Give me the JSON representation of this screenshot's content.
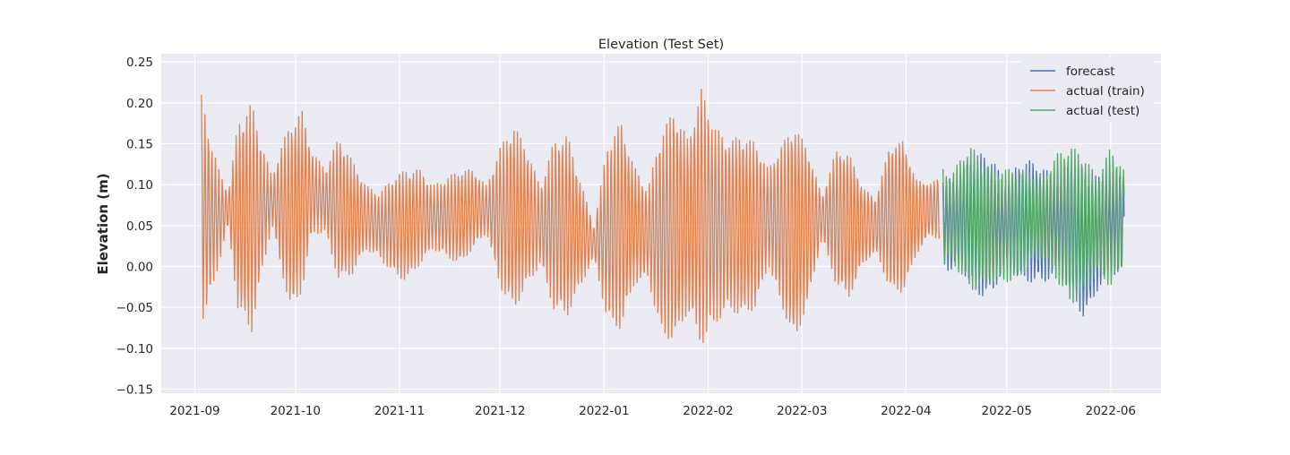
{
  "chart_data": {
    "type": "line",
    "title": "Elevation (Test Set)",
    "xlabel": "",
    "ylabel": "Elevation (m)",
    "xlim": [
      "2021-08-22",
      "2022-06-16"
    ],
    "ylim": [
      -0.155,
      0.26
    ],
    "grid": true,
    "legend_position": "top-right",
    "x_ticks": [
      {
        "label": "2021-09",
        "date": "2021-09-01"
      },
      {
        "label": "2021-10",
        "date": "2021-10-01"
      },
      {
        "label": "2021-11",
        "date": "2021-11-01"
      },
      {
        "label": "2021-12",
        "date": "2021-12-01"
      },
      {
        "label": "2022-01",
        "date": "2022-01-01"
      },
      {
        "label": "2022-02",
        "date": "2022-02-01"
      },
      {
        "label": "2022-03",
        "date": "2022-03-01"
      },
      {
        "label": "2022-04",
        "date": "2022-04-01"
      },
      {
        "label": "2022-05",
        "date": "2022-05-01"
      },
      {
        "label": "2022-06",
        "date": "2022-06-01"
      }
    ],
    "y_ticks": [
      {
        "label": "0.25",
        "value": 0.25
      },
      {
        "label": "0.20",
        "value": 0.2
      },
      {
        "label": "0.15",
        "value": 0.15
      },
      {
        "label": "0.10",
        "value": 0.1
      },
      {
        "label": "0.05",
        "value": 0.05
      },
      {
        "label": "0.00",
        "value": 0.0
      },
      {
        "label": "−0.05",
        "value": -0.05
      },
      {
        "label": "−0.10",
        "value": -0.1
      },
      {
        "label": "−0.15",
        "value": -0.15
      }
    ],
    "series": [
      {
        "name": "forecast",
        "color": "#4c72b0",
        "x": [
          "2022-04-12",
          "2022-04-14",
          "2022-04-17",
          "2022-04-20",
          "2022-04-24",
          "2022-04-27",
          "2022-05-01",
          "2022-05-04",
          "2022-05-08",
          "2022-05-12",
          "2022-05-16",
          "2022-05-20",
          "2022-05-24",
          "2022-05-28",
          "2022-06-01",
          "2022-06-05"
        ],
        "amplitude": [
          0.05,
          0.06,
          0.055,
          0.08,
          0.09,
          0.08,
          0.05,
          0.07,
          0.075,
          0.07,
          0.06,
          0.08,
          0.09,
          0.07,
          0.06,
          0.065
        ],
        "mean": [
          0.055,
          0.05,
          0.055,
          0.055,
          0.05,
          0.05,
          0.05,
          0.055,
          0.055,
          0.05,
          0.05,
          0.05,
          0.025,
          0.04,
          0.05,
          0.055
        ]
      },
      {
        "name": "actual (train)",
        "color": "#dd8452",
        "x": [
          "2021-09-03",
          "2021-09-05",
          "2021-09-08",
          "2021-09-11",
          "2021-09-14",
          "2021-09-18",
          "2021-09-21",
          "2021-09-24",
          "2021-09-27",
          "2021-09-30",
          "2021-10-03",
          "2021-10-06",
          "2021-10-10",
          "2021-10-14",
          "2021-10-18",
          "2021-10-22",
          "2021-10-26",
          "2021-10-30",
          "2021-11-03",
          "2021-11-07",
          "2021-11-11",
          "2021-11-15",
          "2021-11-19",
          "2021-11-23",
          "2021-11-27",
          "2021-12-01",
          "2021-12-05",
          "2021-12-09",
          "2021-12-13",
          "2021-12-17",
          "2021-12-21",
          "2021-12-25",
          "2021-12-29",
          "2022-01-02",
          "2022-01-06",
          "2022-01-10",
          "2022-01-14",
          "2022-01-18",
          "2022-01-22",
          "2022-01-26",
          "2022-01-30",
          "2022-02-03",
          "2022-02-07",
          "2022-02-11",
          "2022-02-15",
          "2022-02-19",
          "2022-02-23",
          "2022-02-27",
          "2022-03-03",
          "2022-03-07",
          "2022-03-11",
          "2022-03-15",
          "2022-03-19",
          "2022-03-23",
          "2022-03-27",
          "2022-03-31",
          "2022-04-04",
          "2022-04-08",
          "2022-04-11"
        ],
        "amplitude": [
          0.14,
          0.11,
          0.06,
          0.02,
          0.12,
          0.14,
          0.08,
          0.03,
          0.08,
          0.12,
          0.11,
          0.05,
          0.04,
          0.09,
          0.07,
          0.04,
          0.04,
          0.06,
          0.07,
          0.06,
          0.04,
          0.05,
          0.06,
          0.05,
          0.03,
          0.09,
          0.12,
          0.09,
          0.05,
          0.11,
          0.12,
          0.07,
          0.02,
          0.12,
          0.14,
          0.08,
          0.06,
          0.14,
          0.16,
          0.12,
          0.18,
          0.14,
          0.12,
          0.13,
          0.12,
          0.07,
          0.12,
          0.16,
          0.11,
          0.03,
          0.1,
          0.11,
          0.06,
          0.04,
          0.11,
          0.12,
          0.06,
          0.04,
          0.05
        ],
        "mean": [
          0.07,
          0.06,
          0.06,
          0.07,
          0.06,
          0.06,
          0.07,
          0.08,
          0.07,
          0.06,
          0.08,
          0.09,
          0.08,
          0.07,
          0.06,
          0.06,
          0.05,
          0.05,
          0.05,
          0.06,
          0.06,
          0.06,
          0.06,
          0.07,
          0.07,
          0.06,
          0.06,
          0.06,
          0.05,
          0.05,
          0.05,
          0.04,
          0.03,
          0.04,
          0.05,
          0.05,
          0.04,
          0.04,
          0.05,
          0.05,
          0.06,
          0.05,
          0.05,
          0.05,
          0.05,
          0.06,
          0.05,
          0.04,
          0.05,
          0.06,
          0.06,
          0.05,
          0.05,
          0.05,
          0.06,
          0.06,
          0.06,
          0.07,
          0.07
        ]
      },
      {
        "name": "actual (test)",
        "color": "#55a868",
        "x": [
          "2022-04-12",
          "2022-04-14",
          "2022-04-17",
          "2022-04-20",
          "2022-04-24",
          "2022-04-27",
          "2022-05-01",
          "2022-05-04",
          "2022-05-08",
          "2022-05-12",
          "2022-05-16",
          "2022-05-20",
          "2022-05-24",
          "2022-05-28",
          "2022-06-01",
          "2022-06-05"
        ],
        "amplitude": [
          0.06,
          0.05,
          0.07,
          0.09,
          0.08,
          0.07,
          0.07,
          0.07,
          0.06,
          0.05,
          0.08,
          0.1,
          0.09,
          0.06,
          0.09,
          0.06
        ],
        "mean": [
          0.06,
          0.06,
          0.06,
          0.06,
          0.05,
          0.05,
          0.05,
          0.05,
          0.06,
          0.06,
          0.06,
          0.05,
          0.05,
          0.05,
          0.06,
          0.06
        ]
      }
    ]
  }
}
